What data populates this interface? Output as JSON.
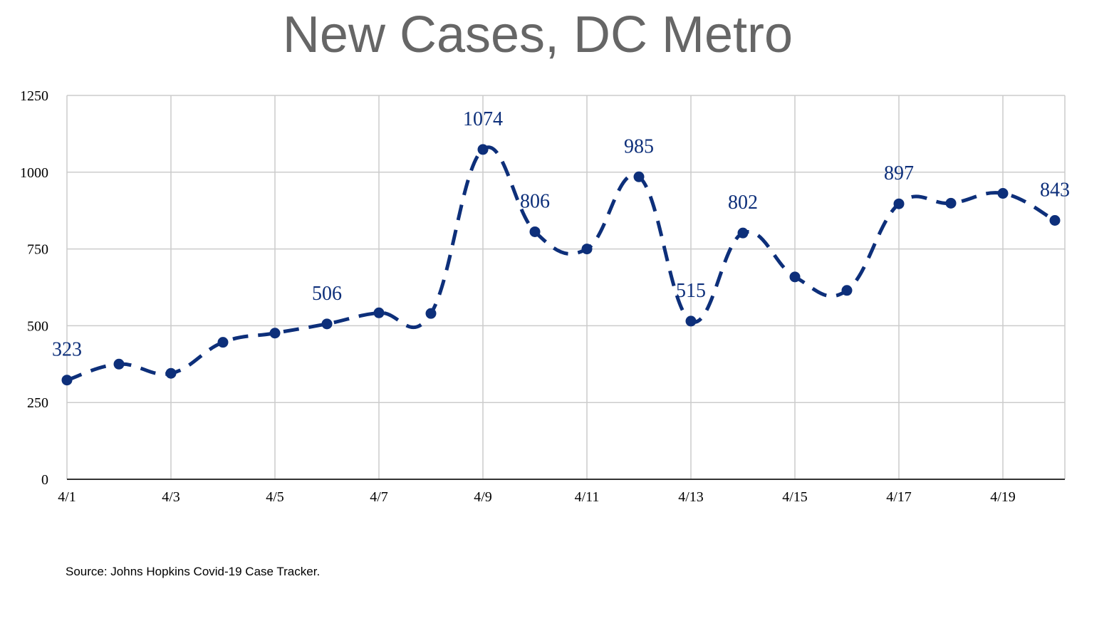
{
  "title": "New Cases, DC Metro",
  "source": "Source: Johns Hopkins Covid-19 Case Tracker.",
  "colors": {
    "series": "#0d2f7a",
    "grid": "#cccccc",
    "title": "#666666"
  },
  "chart_data": {
    "type": "line",
    "title": "New Cases, DC Metro",
    "xlabel": "",
    "ylabel": "",
    "ylim": [
      0,
      1250
    ],
    "yticks": [
      0,
      250,
      500,
      750,
      1000,
      1250
    ],
    "xtick_labels": [
      "4/1",
      "4/3",
      "4/5",
      "4/7",
      "4/9",
      "4/11",
      "4/13",
      "4/15",
      "4/17",
      "4/19"
    ],
    "grid": true,
    "line_style": "dashed, smoothed",
    "categories": [
      "4/1",
      "4/2",
      "4/3",
      "4/4",
      "4/5",
      "4/6",
      "4/7",
      "4/8",
      "4/9",
      "4/10",
      "4/11",
      "4/12",
      "4/13",
      "4/14",
      "4/15",
      "4/16",
      "4/17",
      "4/18",
      "4/19",
      "4/20"
    ],
    "values": [
      323,
      375,
      345,
      446,
      476,
      506,
      542,
      540,
      1074,
      806,
      750,
      985,
      515,
      802,
      659,
      615,
      897,
      899,
      931,
      843
    ],
    "data_labels": [
      {
        "index": 0,
        "text": "323"
      },
      {
        "index": 5,
        "text": "506"
      },
      {
        "index": 8,
        "text": "1074"
      },
      {
        "index": 9,
        "text": "806"
      },
      {
        "index": 11,
        "text": "985"
      },
      {
        "index": 12,
        "text": "515"
      },
      {
        "index": 13,
        "text": "802"
      },
      {
        "index": 16,
        "text": "897"
      },
      {
        "index": 19,
        "text": "843"
      }
    ]
  }
}
